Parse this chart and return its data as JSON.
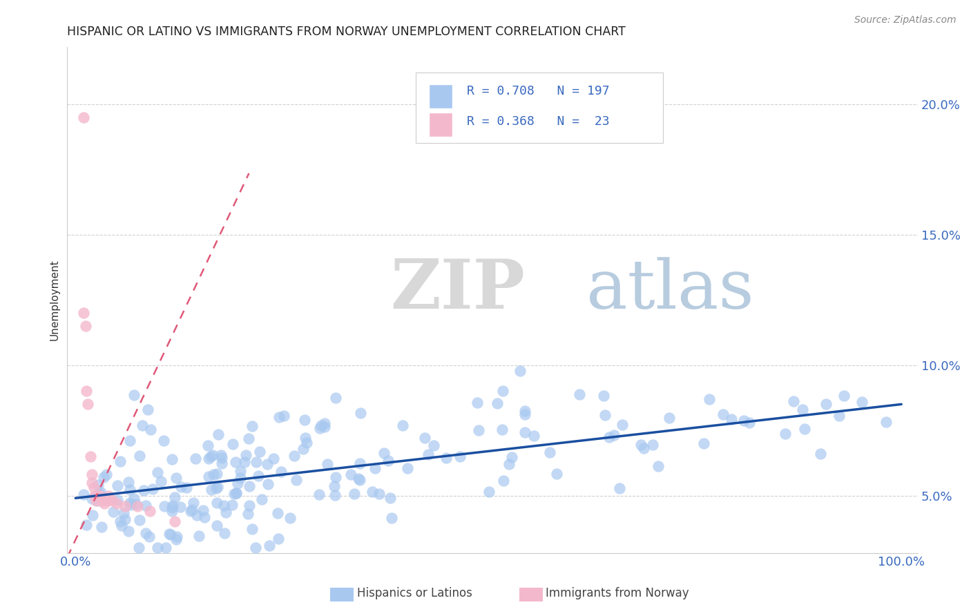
{
  "title": "HISPANIC OR LATINO VS IMMIGRANTS FROM NORWAY UNEMPLOYMENT CORRELATION CHART",
  "source": "Source: ZipAtlas.com",
  "ylabel": "Unemployment",
  "blue_R": "0.708",
  "blue_N": "197",
  "pink_R": "0.368",
  "pink_N": "23",
  "blue_color": "#a8c8f0",
  "pink_color": "#f4b8cc",
  "blue_line_color": "#1a4fa0",
  "pink_line_color": "#e05878",
  "watermark_zip": "ZIP",
  "watermark_atlas": "atlas",
  "background_color": "#ffffff",
  "title_fontsize": 12.5,
  "legend_bottom_blue": "Hispanics or Latinos",
  "legend_bottom_pink": "Immigrants from Norway",
  "xlim": [
    0.0,
    1.0
  ],
  "ylim": [
    0.03,
    0.22
  ],
  "yticks": [
    0.05,
    0.1,
    0.15,
    0.2
  ],
  "ytick_labels": [
    "5.0%",
    "10.0%",
    "15.0%",
    "20.0%"
  ],
  "blue_seed": 42,
  "pink_seed": 99
}
